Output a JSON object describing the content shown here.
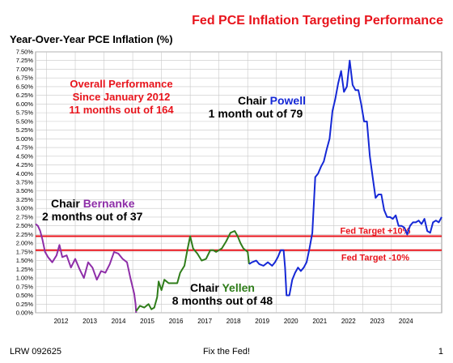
{
  "header": {
    "title": "Fed PCE Inflation Targeting Performance",
    "ylabel": "Year-Over-Year PCE Inflation (%)"
  },
  "footer": {
    "left": "LRW 092625",
    "center": "Fix the Fed!",
    "right": "1"
  },
  "annotations": {
    "overall_line1": "Overall Performance",
    "overall_line2": "Since January 2012",
    "overall_line3": "11 months out of 164",
    "bernanke_prefix": "Chair ",
    "bernanke_name": "Bernanke",
    "bernanke_stat": "2 months out of 37",
    "yellen_prefix": "Chair ",
    "yellen_name": "Yellen",
    "yellen_stat": "8 months out of 48",
    "powell_prefix": "Chair ",
    "powell_name": "Powell",
    "powell_stat": "1 month out of 79"
  },
  "colors": {
    "title": "#e8141c",
    "target_lines": "#e8141c",
    "bernanke": "#8e2ea8",
    "yellen": "#2f7d1a",
    "powell": "#1528d6",
    "overall_text": "#e8141c"
  },
  "chart_data": {
    "type": "line",
    "title": "Fed PCE Inflation Targeting Performance",
    "ylabel": "Year-Over-Year PCE Inflation (%)",
    "xlabel": "",
    "xlim": [
      2011.62,
      2025.75
    ],
    "ylim": [
      0,
      7.5
    ],
    "yticks": [
      "0.00%",
      "0.25%",
      "0.50%",
      "0.75%",
      "1.00%",
      "1.25%",
      "1.50%",
      "1.75%",
      "2.00%",
      "2.25%",
      "2.50%",
      "2.75%",
      "3.00%",
      "3.25%",
      "3.50%",
      "3.75%",
      "4.00%",
      "4.25%",
      "4.50%",
      "4.75%",
      "5.00%",
      "5.25%",
      "5.50%",
      "5.75%",
      "6.00%",
      "6.25%",
      "6.50%",
      "6.75%",
      "7.00%",
      "7.25%",
      "7.50%"
    ],
    "xticks": [
      {
        "label": "2012",
        "x": 2012.0
      },
      {
        "label": "2013",
        "x": 2013.0
      },
      {
        "label": "2014",
        "x": 2014.0
      },
      {
        "label": "2015",
        "x": 2015.0
      },
      {
        "label": "2016",
        "x": 2016.0
      },
      {
        "label": "2017",
        "x": 2017.0
      },
      {
        "label": "2018",
        "x": 2018.0
      },
      {
        "label": "2019",
        "x": 2019.0
      },
      {
        "label": "2020",
        "x": 2020.0
      },
      {
        "label": "2021",
        "x": 2021.0
      },
      {
        "label": "2022",
        "x": 2022.0
      },
      {
        "label": "2023",
        "x": 2023.0
      },
      {
        "label": "2024",
        "x": 2024.0
      }
    ],
    "grid": true,
    "reference_lines": [
      {
        "name": "Fed Target +10%",
        "y": 2.2
      },
      {
        "name": "Fed Target -10%",
        "y": 1.8
      }
    ],
    "series": [
      {
        "name": "Bernanke",
        "points": [
          [
            2011.62,
            2.55
          ],
          [
            2011.7,
            2.5
          ],
          [
            2011.78,
            2.35
          ],
          [
            2011.86,
            2.1
          ],
          [
            2011.95,
            1.75
          ],
          [
            2012.05,
            1.6
          ],
          [
            2012.2,
            1.45
          ],
          [
            2012.35,
            1.65
          ],
          [
            2012.45,
            1.95
          ],
          [
            2012.55,
            1.6
          ],
          [
            2012.7,
            1.65
          ],
          [
            2012.85,
            1.3
          ],
          [
            2013.0,
            1.55
          ],
          [
            2013.15,
            1.25
          ],
          [
            2013.3,
            1.0
          ],
          [
            2013.45,
            1.45
          ],
          [
            2013.6,
            1.3
          ],
          [
            2013.75,
            0.95
          ],
          [
            2013.9,
            1.2
          ],
          [
            2014.05,
            1.15
          ],
          [
            2014.2,
            1.4
          ],
          [
            2014.35,
            1.75
          ],
          [
            2014.5,
            1.7
          ],
          [
            2014.65,
            1.55
          ],
          [
            2014.8,
            1.45
          ],
          [
            2014.92,
            1.0
          ],
          [
            2015.05,
            0.55
          ],
          [
            2015.1,
            0.25
          ],
          [
            2015.12,
            0.0
          ]
        ]
      },
      {
        "name": "Yellen",
        "points": [
          [
            2015.12,
            0.05
          ],
          [
            2015.25,
            0.2
          ],
          [
            2015.4,
            0.15
          ],
          [
            2015.55,
            0.25
          ],
          [
            2015.65,
            0.1
          ],
          [
            2015.75,
            0.15
          ],
          [
            2015.85,
            0.45
          ],
          [
            2015.9,
            0.9
          ],
          [
            2016.0,
            0.65
          ],
          [
            2016.1,
            0.95
          ],
          [
            2016.25,
            0.85
          ],
          [
            2016.4,
            0.85
          ],
          [
            2016.55,
            0.85
          ],
          [
            2016.65,
            1.15
          ],
          [
            2016.8,
            1.35
          ],
          [
            2016.9,
            1.8
          ],
          [
            2017.0,
            2.2
          ],
          [
            2017.1,
            1.85
          ],
          [
            2017.25,
            1.7
          ],
          [
            2017.4,
            1.5
          ],
          [
            2017.55,
            1.55
          ],
          [
            2017.7,
            1.8
          ],
          [
            2017.8,
            1.8
          ],
          [
            2017.9,
            1.75
          ],
          [
            2018.0,
            1.8
          ],
          [
            2018.1,
            1.85
          ],
          [
            2018.25,
            2.05
          ],
          [
            2018.4,
            2.3
          ],
          [
            2018.55,
            2.35
          ],
          [
            2018.65,
            2.2
          ],
          [
            2018.75,
            2.0
          ],
          [
            2018.85,
            1.85
          ],
          [
            2019.0,
            1.75
          ],
          [
            2019.05,
            1.4
          ]
        ]
      },
      {
        "name": "Powell",
        "points": [
          [
            2019.05,
            1.4
          ],
          [
            2019.15,
            1.45
          ],
          [
            2019.3,
            1.5
          ],
          [
            2019.4,
            1.4
          ],
          [
            2019.55,
            1.35
          ],
          [
            2019.7,
            1.45
          ],
          [
            2019.85,
            1.35
          ],
          [
            2019.95,
            1.45
          ],
          [
            2020.05,
            1.6
          ],
          [
            2020.15,
            1.8
          ],
          [
            2020.25,
            1.8
          ],
          [
            2020.3,
            1.3
          ],
          [
            2020.35,
            0.5
          ],
          [
            2020.45,
            0.5
          ],
          [
            2020.55,
            0.95
          ],
          [
            2020.65,
            1.15
          ],
          [
            2020.75,
            1.3
          ],
          [
            2020.85,
            1.2
          ],
          [
            2020.95,
            1.3
          ],
          [
            2021.05,
            1.45
          ],
          [
            2021.15,
            1.85
          ],
          [
            2021.25,
            2.3
          ],
          [
            2021.35,
            3.9
          ],
          [
            2021.45,
            4.0
          ],
          [
            2021.55,
            4.2
          ],
          [
            2021.65,
            4.35
          ],
          [
            2021.75,
            4.7
          ],
          [
            2021.85,
            5.0
          ],
          [
            2021.95,
            5.8
          ],
          [
            2022.05,
            6.15
          ],
          [
            2022.15,
            6.6
          ],
          [
            2022.25,
            6.95
          ],
          [
            2022.35,
            6.35
          ],
          [
            2022.45,
            6.5
          ],
          [
            2022.55,
            7.25
          ],
          [
            2022.65,
            6.55
          ],
          [
            2022.75,
            6.4
          ],
          [
            2022.85,
            6.4
          ],
          [
            2022.95,
            6.0
          ],
          [
            2023.05,
            5.5
          ],
          [
            2023.15,
            5.5
          ],
          [
            2023.25,
            4.5
          ],
          [
            2023.35,
            3.9
          ],
          [
            2023.45,
            3.3
          ],
          [
            2023.55,
            3.4
          ],
          [
            2023.65,
            3.4
          ],
          [
            2023.75,
            2.95
          ],
          [
            2023.85,
            2.75
          ],
          [
            2023.95,
            2.75
          ],
          [
            2024.05,
            2.7
          ],
          [
            2024.15,
            2.8
          ],
          [
            2024.25,
            2.5
          ],
          [
            2024.35,
            2.5
          ],
          [
            2024.45,
            2.45
          ],
          [
            2024.55,
            2.25
          ],
          [
            2024.65,
            2.5
          ],
          [
            2024.75,
            2.6
          ],
          [
            2024.85,
            2.6
          ],
          [
            2024.95,
            2.65
          ],
          [
            2025.05,
            2.55
          ],
          [
            2025.15,
            2.7
          ],
          [
            2025.25,
            2.35
          ],
          [
            2025.35,
            2.3
          ],
          [
            2025.45,
            2.6
          ],
          [
            2025.55,
            2.65
          ],
          [
            2025.65,
            2.6
          ],
          [
            2025.75,
            2.75
          ]
        ]
      }
    ]
  }
}
